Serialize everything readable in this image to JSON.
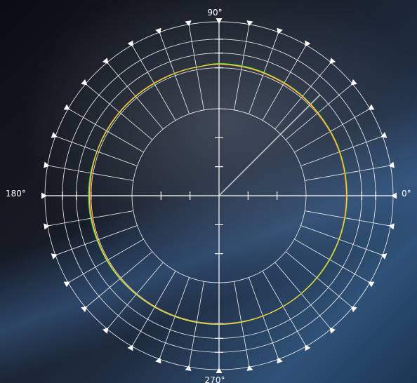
{
  "chart_data": {
    "type": "polar",
    "angle_labels": [
      {
        "angle": 0,
        "text": "0°"
      },
      {
        "angle": 90,
        "text": "90°"
      },
      {
        "angle": 180,
        "text": "180°"
      },
      {
        "angle": 270,
        "text": "270°"
      }
    ],
    "radial_range": [
      0,
      1
    ],
    "ring_values": [
      0.5,
      0.735,
      0.82,
      0.9,
      1.0
    ],
    "spoke_step_deg": 10,
    "inner_tick_values": [
      0.1667,
      0.3333
    ],
    "diagonal_cursor": {
      "angle": 45,
      "length": 0.82
    },
    "grid": true,
    "colors": {
      "grid": "#ffffff",
      "series_green": "#39d24a",
      "series_red": "#e53a2a",
      "series_yellow": "#e8e43a"
    },
    "series": [
      {
        "color": "green",
        "angles": [
          0,
          30,
          60,
          80,
          90,
          100,
          120,
          150,
          180,
          210,
          240,
          270,
          300,
          330,
          360
        ],
        "r": [
          0.735,
          0.74,
          0.75,
          0.758,
          0.76,
          0.75,
          0.745,
          0.745,
          0.75,
          0.745,
          0.74,
          0.74,
          0.735,
          0.735,
          0.735
        ]
      },
      {
        "color": "red",
        "angles": [
          0,
          30,
          60,
          80,
          90,
          100,
          120,
          150,
          180,
          210,
          240,
          270,
          300,
          330,
          360
        ],
        "r": [
          0.73,
          0.735,
          0.745,
          0.752,
          0.755,
          0.75,
          0.748,
          0.748,
          0.74,
          0.74,
          0.738,
          0.738,
          0.735,
          0.732,
          0.73
        ]
      },
      {
        "color": "yellow",
        "angles": [
          0,
          30,
          60,
          80,
          90,
          100,
          120,
          150,
          180,
          210,
          240,
          270,
          300,
          330,
          360
        ],
        "r": [
          0.733,
          0.738,
          0.748,
          0.754,
          0.757,
          0.75,
          0.746,
          0.746,
          0.745,
          0.742,
          0.739,
          0.739,
          0.735,
          0.733,
          0.733
        ]
      }
    ]
  }
}
